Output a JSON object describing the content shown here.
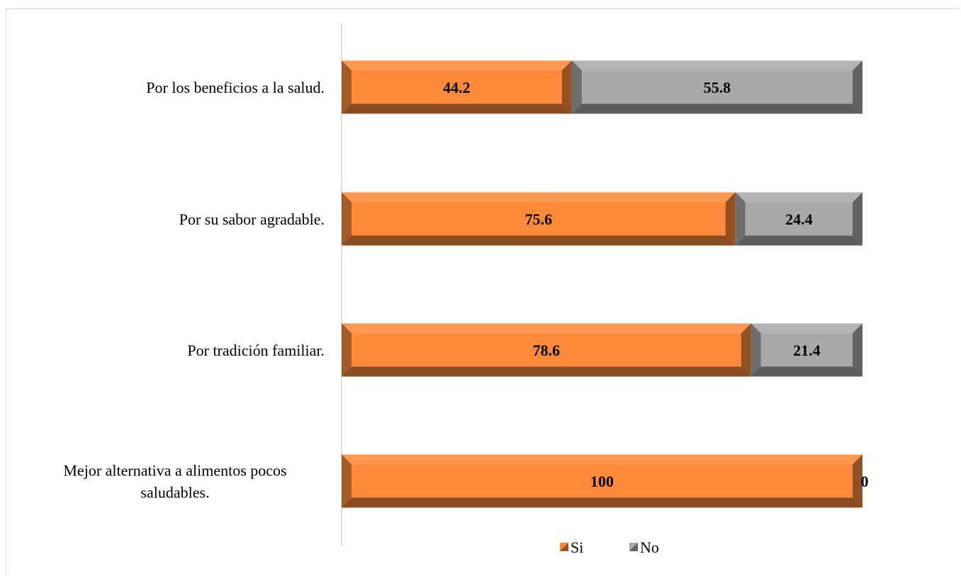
{
  "chart_data": {
    "type": "bar",
    "orientation": "horizontal",
    "stacked": true,
    "title": "",
    "xlabel": "",
    "ylabel": "",
    "xlim": [
      0,
      100
    ],
    "categories": [
      "Por los beneficios a la salud.",
      "Por su sabor agradable.",
      "Por tradición familiar.",
      "Mejor alternativa a alimentos pocos saludables."
    ],
    "series": [
      {
        "name": "Si",
        "values": [
          44.2,
          75.6,
          78.6,
          100
        ],
        "color": "#fd8a3b"
      },
      {
        "name": "No",
        "values": [
          55.8,
          24.4,
          21.4,
          0
        ],
        "color": "#a9a9a9"
      }
    ],
    "data_labels": true,
    "grid": false,
    "legend": {
      "position": "bottom",
      "entries": [
        "Si",
        "No"
      ]
    }
  }
}
